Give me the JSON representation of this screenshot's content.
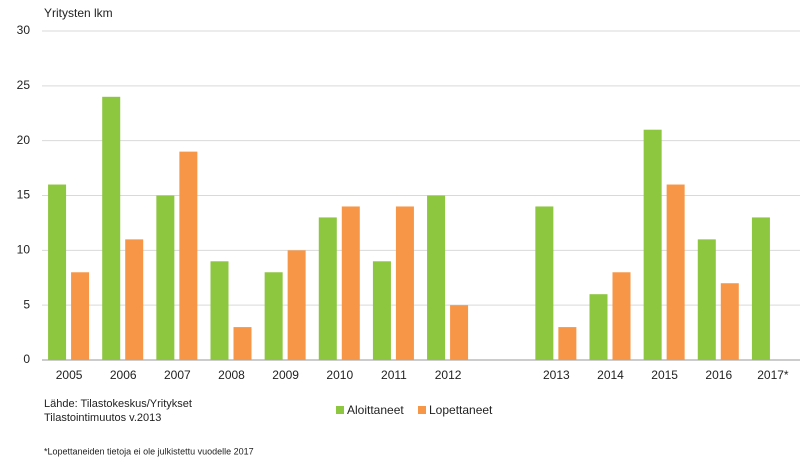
{
  "chart_data": {
    "type": "bar",
    "y_label": "Yritysten lkm",
    "categories": [
      "2005",
      "2006",
      "2007",
      "2008",
      "2009",
      "2010",
      "2011",
      "2012",
      null,
      "2013",
      "2014",
      "2015",
      "2016",
      "2017*"
    ],
    "series": [
      {
        "name": "Aloittaneet",
        "color": "#8dc63f",
        "values": [
          16,
          24,
          15,
          9,
          8,
          13,
          9,
          15,
          null,
          14,
          6,
          21,
          11,
          13
        ]
      },
      {
        "name": "Lopettaneet",
        "color": "#f79646",
        "values": [
          8,
          11,
          19,
          3,
          10,
          14,
          14,
          5,
          null,
          3,
          8,
          16,
          7,
          null
        ]
      }
    ],
    "ylim": [
      0,
      30
    ],
    "yticks": [
      0,
      5,
      10,
      15,
      20,
      25,
      30
    ],
    "grid": true,
    "source": [
      "Lähde: Tilastokeskus/Yritykset",
      "Tilastointimuutos v.2013"
    ],
    "footnote": "*Lopettaneiden tietoja ei ole julkistettu vuodelle 2017"
  }
}
